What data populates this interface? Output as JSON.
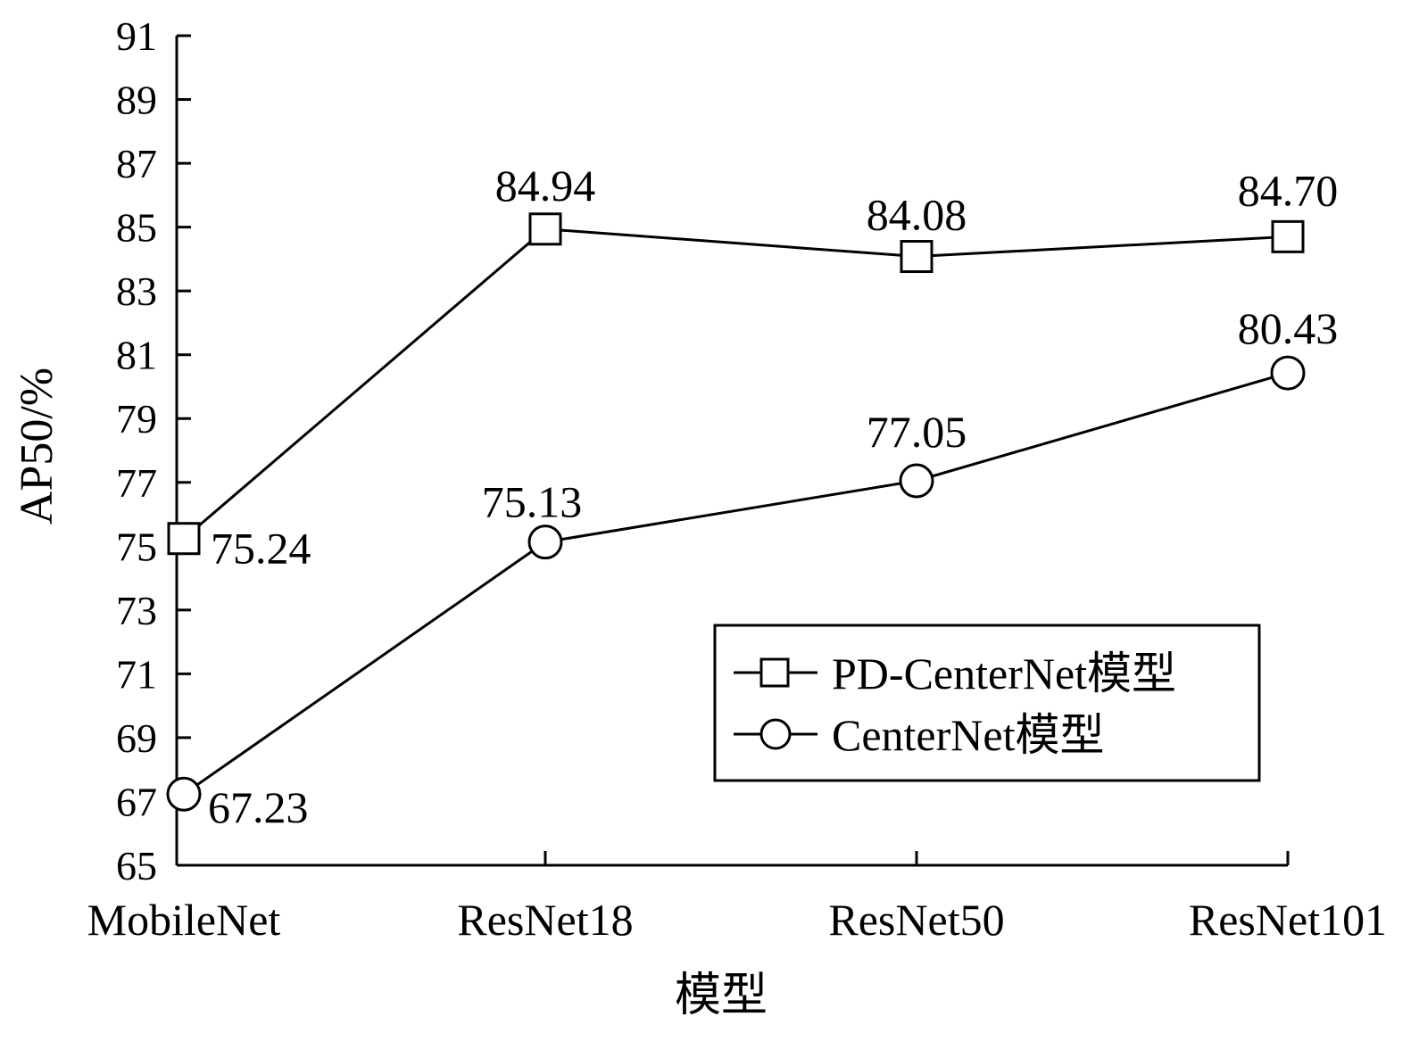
{
  "chart_data": {
    "type": "line",
    "categories": [
      "MobileNet",
      "ResNet18",
      "ResNet50",
      "ResNet101"
    ],
    "series": [
      {
        "name": "PD-CenterNet模型",
        "marker": "square",
        "values": [
          75.24,
          84.94,
          84.08,
          84.7
        ],
        "labels": [
          "75.24",
          "84.94",
          "84.08",
          "84.70"
        ]
      },
      {
        "name": "CenterNet模型",
        "marker": "circle",
        "values": [
          67.23,
          75.13,
          77.05,
          80.43
        ],
        "labels": [
          "67.23",
          "75.13",
          "77.05",
          "80.43"
        ]
      }
    ],
    "xlabel": "模型",
    "ylabel": "AP50/%",
    "ylim": [
      65,
      91
    ],
    "yticks": [
      "65",
      "67",
      "69",
      "71",
      "73",
      "75",
      "77",
      "79",
      "81",
      "83",
      "85",
      "87",
      "89",
      "91"
    ],
    "grid": false,
    "legend_position": "lower-right"
  },
  "colors": {
    "line": "#000000",
    "background": "#ffffff"
  }
}
